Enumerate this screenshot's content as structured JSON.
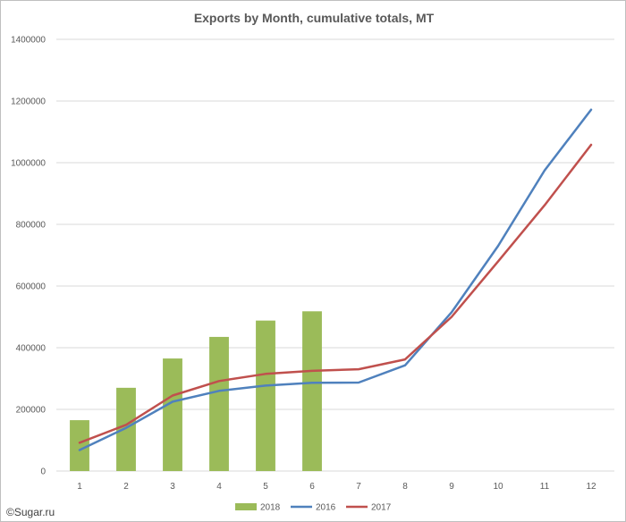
{
  "chart_data": {
    "type": "bar+line",
    "title": "Exports by Month, cumulative totals, MT",
    "xlabel": "",
    "ylabel": "",
    "categories": [
      "1",
      "2",
      "3",
      "4",
      "5",
      "6",
      "7",
      "8",
      "9",
      "10",
      "11",
      "12"
    ],
    "ylim": [
      0,
      1400000
    ],
    "yticks": [
      0,
      200000,
      400000,
      600000,
      800000,
      1000000,
      1200000,
      1400000
    ],
    "ytick_labels": [
      "0",
      "200000",
      "400000",
      "600000",
      "800000",
      "1000000",
      "1200000",
      "1400000"
    ],
    "grid": true,
    "legend_position": "bottom",
    "series": [
      {
        "name": "2018",
        "kind": "bar",
        "color": "#9bbb59",
        "values": [
          165000,
          270000,
          365000,
          435000,
          488000,
          518000,
          null,
          null,
          null,
          null,
          null,
          null
        ]
      },
      {
        "name": "2016",
        "kind": "line",
        "color": "#4f81bd",
        "values": [
          68000,
          140000,
          225000,
          260000,
          277000,
          286000,
          287000,
          343000,
          515000,
          730000,
          975000,
          1172000
        ]
      },
      {
        "name": "2017",
        "kind": "line",
        "color": "#c0504d",
        "values": [
          92000,
          150000,
          245000,
          292000,
          315000,
          325000,
          330000,
          362000,
          500000,
          680000,
          862000,
          1058000
        ]
      }
    ]
  },
  "watermark": "©Sugar.ru"
}
